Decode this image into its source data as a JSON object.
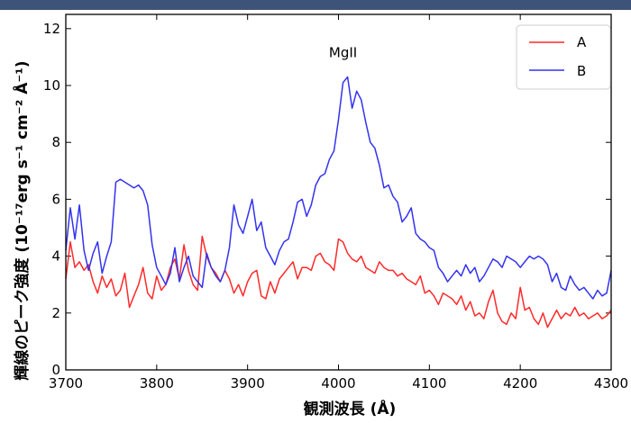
{
  "chart_data": {
    "type": "line",
    "xlabel": "観測波長 (Å)",
    "ylabel": "輝線のピーク強度 (10⁻¹⁷erg s⁻¹ cm⁻² Å⁻¹)",
    "xlim": [
      3700,
      4300
    ],
    "ylim": [
      0,
      12.5
    ],
    "xticks": [
      "3700",
      "3800",
      "3900",
      "4000",
      "4100",
      "4200",
      "4300"
    ],
    "yticks": [
      "0",
      "2",
      "4",
      "6",
      "8",
      "10",
      "12"
    ],
    "grid": false,
    "legend_position": "top-right",
    "annotations": [
      {
        "text": "MgII",
        "x": 4005,
        "y": 11.0
      }
    ],
    "series": [
      {
        "name": "A",
        "color": "#ff2a2a",
        "x": [
          3700,
          3705,
          3710,
          3715,
          3720,
          3725,
          3730,
          3735,
          3740,
          3745,
          3750,
          3755,
          3760,
          3765,
          3770,
          3775,
          3780,
          3785,
          3790,
          3795,
          3800,
          3805,
          3810,
          3815,
          3820,
          3825,
          3830,
          3835,
          3840,
          3845,
          3850,
          3855,
          3860,
          3865,
          3870,
          3875,
          3880,
          3885,
          3890,
          3895,
          3900,
          3905,
          3910,
          3915,
          3920,
          3925,
          3930,
          3935,
          3940,
          3945,
          3950,
          3955,
          3960,
          3965,
          3970,
          3975,
          3980,
          3985,
          3990,
          3995,
          4000,
          4005,
          4010,
          4015,
          4020,
          4025,
          4030,
          4035,
          4040,
          4045,
          4050,
          4055,
          4060,
          4065,
          4070,
          4075,
          4080,
          4085,
          4090,
          4095,
          4100,
          4105,
          4110,
          4115,
          4120,
          4125,
          4130,
          4135,
          4140,
          4145,
          4150,
          4155,
          4160,
          4165,
          4170,
          4175,
          4180,
          4185,
          4190,
          4195,
          4200,
          4205,
          4210,
          4215,
          4220,
          4225,
          4230,
          4235,
          4240,
          4245,
          4250,
          4255,
          4260,
          4265,
          4270,
          4275,
          4280,
          4285,
          4290,
          4295,
          4300
        ],
        "values": [
          3.2,
          4.5,
          3.6,
          3.8,
          3.5,
          3.7,
          3.1,
          2.7,
          3.3,
          2.9,
          3.2,
          2.6,
          2.8,
          3.4,
          2.2,
          2.6,
          3.0,
          3.6,
          2.7,
          2.5,
          3.3,
          2.8,
          3.0,
          3.6,
          3.9,
          3.2,
          4.4,
          3.5,
          3.0,
          2.8,
          4.7,
          4.0,
          3.6,
          3.4,
          3.1,
          3.5,
          3.2,
          2.7,
          3.0,
          2.6,
          3.1,
          3.4,
          3.5,
          2.6,
          2.5,
          3.1,
          2.7,
          3.2,
          3.4,
          3.6,
          3.8,
          3.2,
          3.6,
          3.6,
          3.5,
          4.0,
          4.1,
          3.8,
          3.7,
          3.5,
          4.6,
          4.5,
          4.1,
          3.9,
          3.8,
          4.0,
          3.6,
          3.5,
          3.4,
          3.8,
          3.6,
          3.5,
          3.5,
          3.3,
          3.4,
          3.2,
          3.1,
          3.0,
          3.3,
          2.7,
          2.8,
          2.6,
          2.3,
          2.7,
          2.6,
          2.5,
          2.3,
          2.6,
          2.1,
          2.4,
          1.9,
          2.0,
          1.8,
          2.4,
          2.8,
          2.0,
          1.7,
          1.6,
          2.0,
          1.8,
          2.9,
          2.1,
          2.2,
          1.8,
          1.6,
          2.0,
          1.5,
          1.8,
          2.1,
          1.8,
          2.0,
          1.9,
          2.2,
          1.9,
          2.0,
          1.8,
          1.9,
          2.0,
          1.8,
          1.9,
          2.1
        ]
      },
      {
        "name": "B",
        "color": "#3333ee",
        "x": [
          3700,
          3705,
          3710,
          3715,
          3720,
          3725,
          3730,
          3735,
          3740,
          3745,
          3750,
          3755,
          3760,
          3765,
          3770,
          3775,
          3780,
          3785,
          3790,
          3795,
          3800,
          3805,
          3810,
          3815,
          3820,
          3825,
          3830,
          3835,
          3840,
          3845,
          3850,
          3855,
          3860,
          3865,
          3870,
          3875,
          3880,
          3885,
          3890,
          3895,
          3900,
          3905,
          3910,
          3915,
          3920,
          3925,
          3930,
          3935,
          3940,
          3945,
          3950,
          3955,
          3960,
          3965,
          3970,
          3975,
          3980,
          3985,
          3990,
          3995,
          4000,
          4005,
          4010,
          4015,
          4020,
          4025,
          4030,
          4035,
          4040,
          4045,
          4050,
          4055,
          4060,
          4065,
          4070,
          4075,
          4080,
          4085,
          4090,
          4095,
          4100,
          4105,
          4110,
          4115,
          4120,
          4125,
          4130,
          4135,
          4140,
          4145,
          4150,
          4155,
          4160,
          4165,
          4170,
          4175,
          4180,
          4185,
          4190,
          4195,
          4200,
          4205,
          4210,
          4215,
          4220,
          4225,
          4230,
          4235,
          4240,
          4245,
          4250,
          4255,
          4260,
          4265,
          4270,
          4275,
          4280,
          4285,
          4290,
          4295,
          4300
        ],
        "values": [
          4.2,
          5.7,
          4.6,
          5.8,
          4.2,
          3.5,
          4.1,
          4.5,
          3.4,
          4.0,
          4.5,
          6.6,
          6.7,
          6.6,
          6.5,
          6.4,
          6.5,
          6.3,
          5.8,
          4.4,
          3.6,
          3.3,
          3.0,
          3.4,
          4.3,
          3.1,
          3.6,
          4.0,
          3.3,
          3.1,
          2.9,
          4.1,
          3.6,
          3.3,
          3.1,
          3.5,
          4.3,
          5.8,
          5.1,
          4.8,
          5.4,
          6.0,
          4.9,
          5.2,
          4.3,
          4.0,
          3.7,
          4.2,
          4.5,
          4.6,
          5.2,
          5.9,
          6.0,
          5.4,
          5.8,
          6.5,
          6.8,
          6.9,
          7.4,
          7.7,
          8.8,
          10.1,
          10.3,
          9.2,
          9.8,
          9.5,
          8.7,
          8.0,
          7.8,
          7.2,
          6.4,
          6.5,
          6.1,
          5.9,
          5.2,
          5.4,
          5.7,
          4.8,
          4.6,
          4.5,
          4.3,
          4.2,
          3.6,
          3.4,
          3.1,
          3.3,
          3.5,
          3.3,
          3.7,
          3.4,
          3.6,
          3.1,
          3.3,
          3.6,
          3.9,
          3.8,
          3.6,
          4.0,
          3.9,
          3.8,
          3.6,
          3.8,
          4.0,
          3.9,
          4.0,
          3.9,
          3.7,
          3.1,
          3.4,
          2.9,
          2.8,
          3.3,
          3.0,
          2.8,
          2.9,
          2.7,
          2.5,
          2.8,
          2.6,
          2.7,
          3.5
        ]
      }
    ]
  }
}
